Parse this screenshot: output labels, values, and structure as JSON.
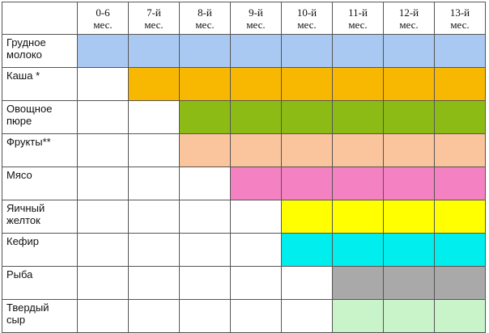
{
  "table": {
    "columns": [
      "0-6\nмес.",
      "7-й\nмес.",
      "8-й\nмес.",
      "9-й\nмес.",
      "10-й\nмес.",
      "11-й\nмес.",
      "12-й\nмес.",
      "13-й\nмес."
    ],
    "rows": [
      {
        "label": "Грудное\nмолоко",
        "start_column": 0,
        "color": "#a9c9f2"
      },
      {
        "label": "Каша *",
        "start_column": 1,
        "color": "#f8b700"
      },
      {
        "label": "Овощное\nпюре",
        "start_column": 2,
        "color": "#8dbb16"
      },
      {
        "label": "Фрукты**",
        "start_column": 2,
        "color": "#fac49c"
      },
      {
        "label": "Мясо",
        "start_column": 3,
        "color": "#f482c2"
      },
      {
        "label": "Яичный\nжелток",
        "start_column": 4,
        "color": "#ffff00"
      },
      {
        "label": "Кефир",
        "start_column": 4,
        "color": "#00eeee"
      },
      {
        "label": "Рыба",
        "start_column": 5,
        "color": "#a9a9a9"
      },
      {
        "label": "Твердый\nсыр",
        "start_column": 5,
        "color": "#c9f3c9"
      }
    ]
  }
}
